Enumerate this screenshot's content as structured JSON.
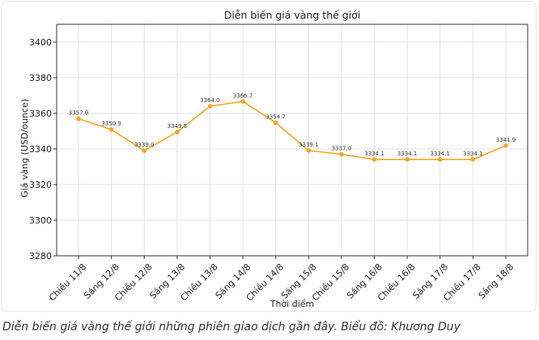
{
  "caption": "Diễn biến giá vàng thế giới những phiên giao dịch gần đây. Biểu đồ: Khương Duy",
  "chart_data": {
    "type": "line",
    "title": "Diễn biến giá vàng thế giới",
    "xlabel": "Thời điểm",
    "ylabel": "Giá vàng (USD/ounce)",
    "categories": [
      "Chiều 11/8",
      "Sáng 12/8",
      "Chiều 12/8",
      "Sáng 13/8",
      "Chiều 13/8",
      "Sáng 14/8",
      "Chiều 14/8",
      "Sáng 15/8",
      "Chiều 15/8",
      "Sáng 16/8",
      "Chiều 16/8",
      "Sáng 17/8",
      "Chiều 17/8",
      "Sáng 18/8"
    ],
    "values": [
      3357.0,
      3350.9,
      3339.0,
      3349.5,
      3364.0,
      3366.7,
      3354.7,
      3339.1,
      3337.0,
      3334.1,
      3334.1,
      3334.1,
      3334.1,
      3341.9
    ],
    "data_labels": [
      "3357.0",
      "3350.9",
      "3339.0",
      "3349.5",
      "3364.0",
      "3366.7",
      "3354.7",
      "3339.1",
      "3337.0",
      "3334.1",
      "3334.1",
      "3334.1",
      "3334.1",
      "3341.9"
    ],
    "yticks": [
      3280,
      3300,
      3320,
      3340,
      3360,
      3380,
      3400
    ],
    "ylim": [
      3280,
      3410
    ],
    "grid": true,
    "line_color": "#f5a623"
  }
}
